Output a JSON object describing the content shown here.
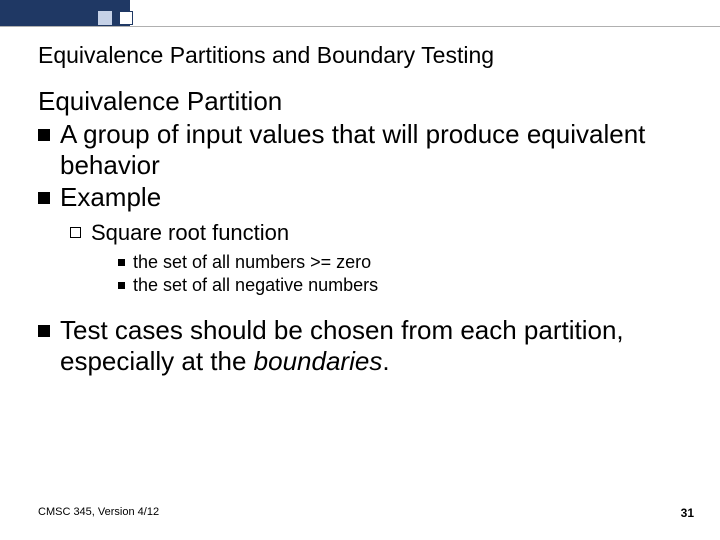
{
  "accent": {
    "bar_color": "#1f3864",
    "light_square_color": "#c5d1e7",
    "rule_color": "#b0b0b0"
  },
  "title": "Equivalence Partitions and Boundary Testing",
  "body": {
    "heading": "Equivalence Partition",
    "bullet1": "A group of input values that will produce equivalent behavior",
    "bullet2": "Example",
    "sub1": "Square root function",
    "sub1a": "the set of all numbers >= zero",
    "sub1b": "the set of all negative numbers",
    "bullet3_pre": "Test cases should be chosen from each partition, especially at the ",
    "bullet3_em": "boundaries",
    "bullet3_post": "."
  },
  "footer": {
    "left": "CMSC 345, Version 4/12",
    "page": "31"
  }
}
